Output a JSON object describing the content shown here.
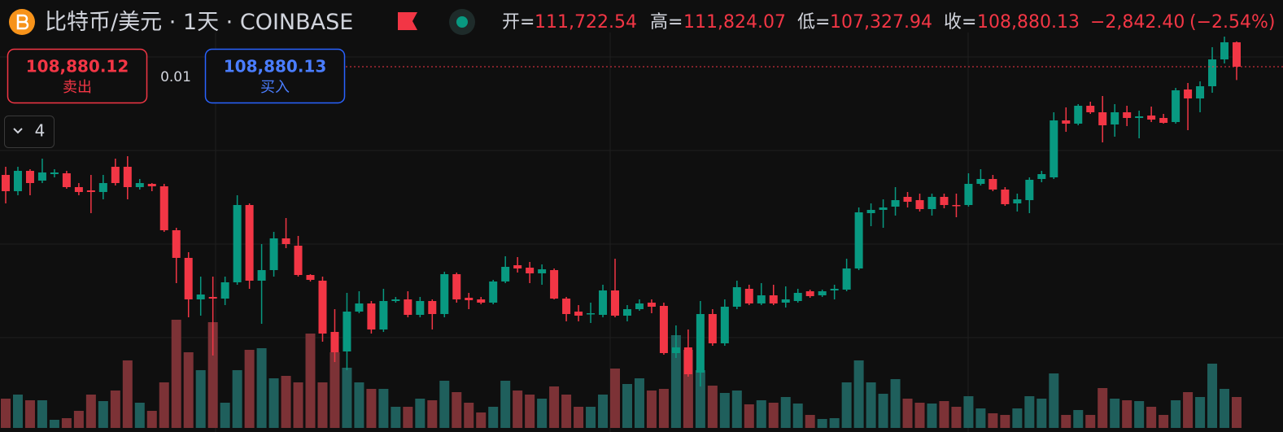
{
  "header": {
    "symbol": "比特币/美元",
    "separator": "·",
    "interval": "1天",
    "exchange": "COINBASE",
    "ohlc": [
      {
        "label": "开=",
        "value": "111,722.54"
      },
      {
        "label": "高=",
        "value": "111,824.07"
      },
      {
        "label": "低=",
        "value": "107,327.94"
      },
      {
        "label": "收=",
        "value": "108,880.13"
      }
    ],
    "change": "−2,842.40",
    "change_pct": "(−2.54%)"
  },
  "trade": {
    "sell_price": "108,880.12",
    "sell_label": "卖出",
    "spread": "0.01",
    "buy_price": "108,880.13",
    "buy_label": "买入"
  },
  "indicators": {
    "count": "4"
  },
  "chart_data": {
    "type": "candlestick",
    "up_color": "#089981",
    "down_color": "#f23645",
    "volume_up_color": "#1f5f5c",
    "volume_down_color": "#7c3236",
    "ylim": [
      66359,
      116645
    ],
    "vlim": [
      0,
      491
    ],
    "open": [
      96285,
      94391,
      96758,
      95622,
      96379,
      96474,
      94864,
      94485,
      94296,
      97231,
      97231,
      94864,
      95243,
      94959,
      89845,
      86626,
      81796,
      82080,
      81890,
      83784,
      92781,
      83973,
      85205,
      88898,
      88046,
      84636,
      83973,
      78008,
      75734,
      80375,
      81322,
      78292,
      81606,
      81796,
      79996,
      81606,
      80091,
      84731,
      81985,
      81796,
      81417,
      83879,
      85773,
      85489,
      84826,
      85205,
      81890,
      80375,
      80091,
      79996,
      82837,
      79901,
      80659,
      81417,
      81038,
      75545,
      76208,
      73273,
      80091,
      76682,
      80943,
      83027,
      81322,
      82269,
      81417,
      81606,
      82743,
      82269,
      82837,
      82932,
      85394,
      91834,
      92213,
      92592,
      93728,
      93349,
      92308,
      93728,
      92781,
      92781,
      95243,
      95811,
      94580,
      92970,
      93349,
      95811,
      96000,
      102630,
      102251,
      104334,
      103576,
      102156,
      103576,
      102914,
      103198,
      102914,
      102440,
      106228,
      105186,
      106607,
      109732,
      111722.54
    ],
    "high": [
      97231,
      97231,
      96947,
      98179,
      96947,
      96758,
      95337,
      96285,
      96285,
      98179,
      98463,
      95811,
      95337,
      95243,
      90129,
      87288,
      84447,
      84447,
      84447,
      93917,
      92970,
      88235,
      89656,
      91266,
      89182,
      84731,
      84447,
      80659,
      82553,
      82743,
      81606,
      83027,
      82080,
      82743,
      82080,
      81796,
      85015,
      84921,
      82553,
      82080,
      84068,
      86815,
      86720,
      86152,
      85868,
      85394,
      82080,
      81133,
      81417,
      83500,
      86530,
      81133,
      81796,
      81796,
      81417,
      78765,
      78292,
      81606,
      80659,
      81796,
      83973,
      83500,
      83690,
      83500,
      83311,
      83027,
      82932,
      82932,
      83500,
      86530,
      92497,
      92970,
      93444,
      94864,
      94296,
      94107,
      94107,
      94107,
      94107,
      96474,
      96947,
      96285,
      94864,
      94107,
      96000,
      96758,
      103576,
      104145,
      104523,
      104808,
      105470,
      104523,
      104334,
      103766,
      104239,
      103387,
      106418,
      106986,
      107175,
      111152,
      112384,
      111824.07
    ],
    "low": [
      92970,
      93917,
      93917,
      95337,
      96000,
      94675,
      93917,
      91834,
      93444,
      95053,
      93444,
      94580,
      94391,
      89656,
      83690,
      79712,
      79901,
      75261,
      81133,
      83500,
      83027,
      78954,
      84447,
      87762,
      84447,
      83879,
      76871,
      74504,
      73557,
      80186,
      77818,
      78008,
      81417,
      79712,
      79712,
      78292,
      79712,
      81417,
      80659,
      81227,
      81227,
      83690,
      84921,
      83690,
      83500,
      81796,
      79239,
      79239,
      79049,
      79712,
      79712,
      79239,
      80470,
      80186,
      75356,
      74977,
      72799,
      71663,
      76398,
      76398,
      80659,
      81133,
      81133,
      81133,
      80849,
      81417,
      81985,
      82080,
      81796,
      82743,
      85205,
      90319,
      90129,
      91550,
      92497,
      92023,
      91550,
      92402,
      91360,
      92592,
      95053,
      94391,
      92686,
      92023,
      91834,
      95432,
      95811,
      101304,
      102061,
      103387,
      100073,
      100735,
      101967,
      100546,
      102440,
      102251,
      102251,
      101493,
      103576,
      105849,
      109258,
      107327.94
    ],
    "close": [
      94391,
      96758,
      95337,
      96569,
      96569,
      94864,
      94296,
      94296,
      95337,
      95337,
      94864,
      95337,
      94959,
      89845,
      86626,
      81796,
      82364,
      81890,
      83784,
      92781,
      83973,
      85205,
      88898,
      88235,
      84636,
      84068,
      77818,
      75640,
      80375,
      81322,
      78292,
      81606,
      81796,
      79996,
      81606,
      80091,
      84731,
      81796,
      81701,
      81417,
      83879,
      85584,
      85394,
      84826,
      85300,
      81890,
      80091,
      79901,
      80186,
      82837,
      79901,
      80659,
      81322,
      80943,
      75545,
      76208,
      73083,
      80091,
      76682,
      80943,
      83216,
      81322,
      82269,
      81322,
      81796,
      82553,
      82174,
      82743,
      83027,
      85394,
      91929,
      92213,
      92497,
      93349,
      93160,
      92308,
      93728,
      92781,
      92686,
      95243,
      95811,
      94580,
      92876,
      93444,
      95716,
      96379,
      102630,
      102251,
      104334,
      103576,
      102061,
      103576,
      102914,
      103103,
      102724,
      102345,
      106133,
      105186,
      106607,
      109732,
      111722.54,
      108880.13
    ],
    "volume": [
      36,
      41,
      34,
      34,
      10,
      12,
      21,
      41,
      33,
      46,
      83,
      31,
      21,
      56,
      133,
      93,
      71,
      130,
      31,
      71,
      96,
      98,
      61,
      64,
      56,
      116,
      56,
      93,
      74,
      56,
      48,
      48,
      26,
      26,
      36,
      34,
      58,
      44,
      31,
      19,
      26,
      58,
      46,
      41,
      36,
      51,
      41,
      26,
      26,
      41,
      73,
      54,
      61,
      46,
      48,
      114,
      96,
      71,
      52,
      43,
      46,
      29,
      34,
      31,
      38,
      30,
      16,
      11,
      12,
      56,
      83,
      56,
      42,
      60,
      36,
      31,
      30,
      33,
      26,
      39,
      24,
      18,
      16,
      24,
      39,
      36,
      67,
      16,
      22,
      16,
      49,
      36,
      34,
      33,
      26,
      16,
      34,
      44,
      38,
      79,
      48,
      38
    ]
  }
}
